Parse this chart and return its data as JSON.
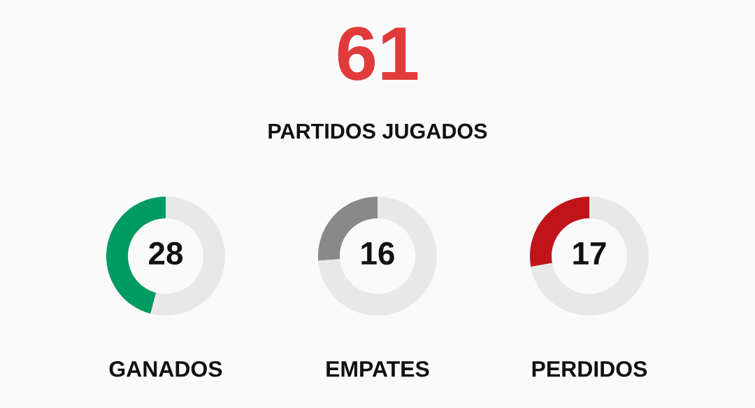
{
  "chart_data": [
    {
      "type": "other",
      "title": "61",
      "subtitle": "PARTIDOS JUGADOS"
    },
    {
      "type": "donut",
      "title": "GANADOS",
      "categories": [
        null,
        null
      ],
      "values": [
        28,
        33
      ],
      "colors": [
        "#009a63",
        "#e8e8e8"
      ],
      "value_labels": [
        "28",
        null
      ]
    },
    {
      "type": "donut",
      "title": "EMPATES",
      "categories": [
        null,
        null
      ],
      "values": [
        16,
        45
      ],
      "colors": [
        "#898989",
        "#e8e8e8"
      ],
      "value_labels": [
        "16",
        null
      ]
    },
    {
      "type": "donut",
      "title": "PERDIDOS",
      "categories": [
        null,
        null
      ],
      "values": [
        17,
        44
      ],
      "colors": [
        "#c0141a",
        "#e8e8e8"
      ],
      "value_labels": [
        "17",
        null
      ]
    }
  ]
}
